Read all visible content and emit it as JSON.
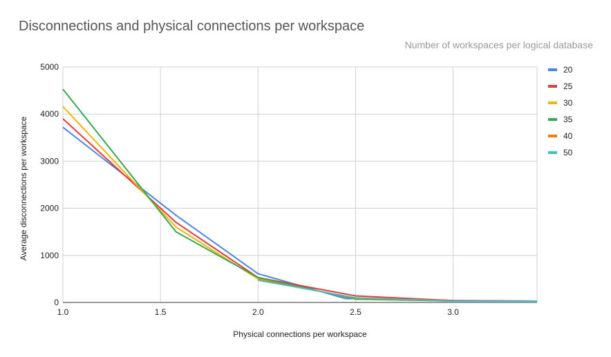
{
  "chart_data": {
    "type": "line",
    "title": "Disconnections and physical connections per workspace",
    "xlabel": "Physical connections per workspace",
    "ylabel": "Average disconnections per workspace",
    "legend_title": "Number of workspaces per logical database",
    "legend_position": "right",
    "grid": true,
    "xlim": [
      1.0,
      3.43
    ],
    "ylim": [
      0,
      5000
    ],
    "x_ticks": [
      "1.0",
      "1.5",
      "2.0",
      "2.5",
      "3.0"
    ],
    "y_ticks": [
      "0",
      "1000",
      "2000",
      "3000",
      "4000",
      "5000"
    ],
    "series": [
      {
        "name": "20",
        "color": "#4a86e8",
        "x": [
          1.0,
          1.58,
          2.0,
          2.45,
          2.55,
          3.0,
          3.43
        ],
        "y": [
          3720,
          1850,
          610,
          80,
          80,
          40,
          30
        ]
      },
      {
        "name": "25",
        "color": "#e53935",
        "x": [
          1.0,
          1.58,
          2.0,
          2.5,
          3.0,
          3.43
        ],
        "y": [
          3900,
          1700,
          530,
          140,
          40,
          30
        ]
      },
      {
        "name": "30",
        "color": "#f4b400",
        "x": [
          1.0,
          1.58,
          2.0,
          2.5,
          3.0,
          3.43
        ],
        "y": [
          4160,
          1600,
          500,
          90,
          30,
          30
        ]
      },
      {
        "name": "35",
        "color": "#34a853",
        "x": [
          1.0,
          1.58,
          2.0,
          2.5,
          3.0,
          3.43
        ],
        "y": [
          4530,
          1500,
          530,
          70,
          30,
          30
        ]
      },
      {
        "name": "40",
        "color": "#f57c00",
        "x": [
          2.0,
          2.5,
          3.0,
          3.43
        ],
        "y": [
          490,
          90,
          30,
          30
        ]
      },
      {
        "name": "50",
        "color": "#46bdc6",
        "x": [
          2.0,
          2.5,
          3.0,
          3.43
        ],
        "y": [
          470,
          100,
          30,
          30
        ]
      }
    ]
  }
}
